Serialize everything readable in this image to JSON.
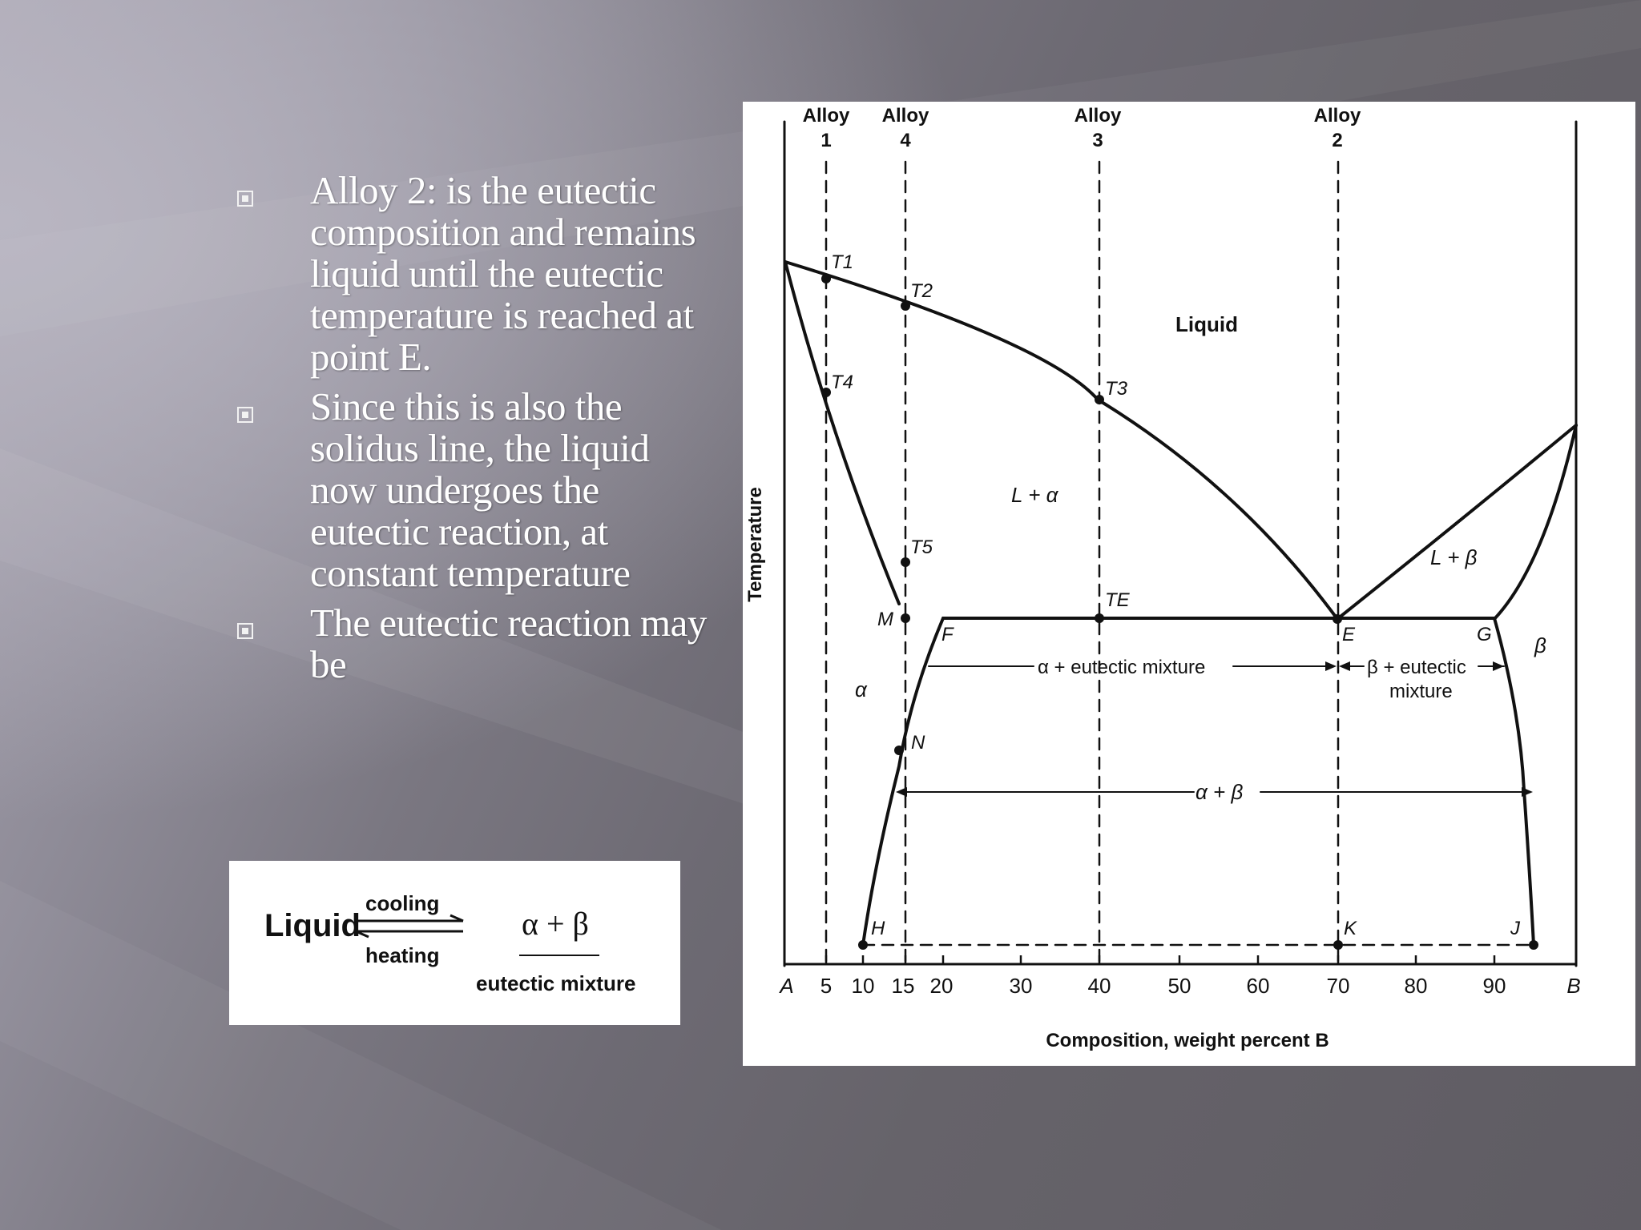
{
  "slide": {
    "bullets": [
      {
        "text": "Alloy 2: is the eutectic composition and remains liquid until the eutectic temperature is reached at point E."
      },
      {
        "text": "Since this is also the solidus line, the liquid now undergoes the eutectic reaction, at constant temperature"
      },
      {
        "text": "The eutectic reaction may be"
      }
    ]
  },
  "reaction": {
    "reactant": "Liquid",
    "forward": "cooling",
    "backward": "heating",
    "product": "α + β",
    "product_note": "eutectic mixture"
  },
  "diagram": {
    "axis": {
      "ylabel": "Temperature",
      "xlabel": "Composition, weight percent B",
      "ticks": [
        "A",
        "5",
        "10",
        "15",
        "20",
        "30",
        "40",
        "50",
        "60",
        "70",
        "80",
        "90",
        "B"
      ]
    },
    "alloys": [
      {
        "label": "Alloy",
        "num": "1"
      },
      {
        "label": "Alloy",
        "num": "4"
      },
      {
        "label": "Alloy",
        "num": "3"
      },
      {
        "label": "Alloy",
        "num": "2"
      }
    ],
    "regions": {
      "liquid": "Liquid",
      "l_alpha": "L + α",
      "l_beta": "L + β",
      "alpha": "α",
      "beta": "β",
      "alpha_eutectic": "α + eutectic mixture",
      "beta_eutectic_1": "β + eutectic",
      "beta_eutectic_2": "mixture",
      "alpha_beta": "α + β"
    },
    "points": {
      "T1": "T1",
      "T2": "T2",
      "T3": "T3",
      "T4": "T4",
      "T5": "T5",
      "TE": "TE",
      "M": "M",
      "F": "F",
      "E": "E",
      "G": "G",
      "N": "N",
      "H": "H",
      "K": "K",
      "J": "J"
    }
  }
}
